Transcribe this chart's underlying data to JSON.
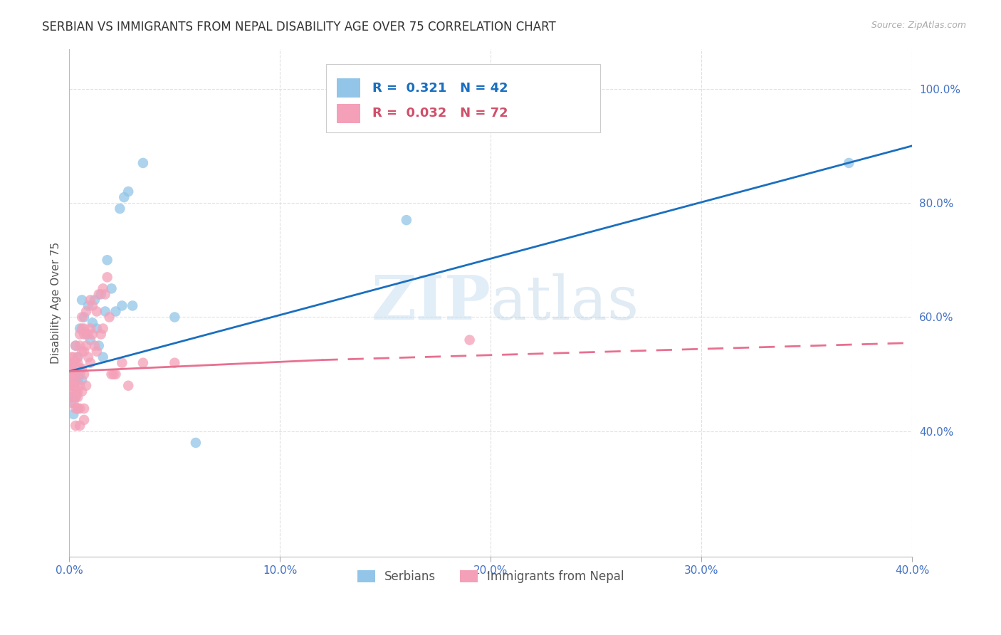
{
  "title": "SERBIAN VS IMMIGRANTS FROM NEPAL DISABILITY AGE OVER 75 CORRELATION CHART",
  "source": "Source: ZipAtlas.com",
  "ylabel": "Disability Age Over 75",
  "legend_label_serbian": "Serbians",
  "legend_label_nepal": "Immigrants from Nepal",
  "serbian_color": "#92C5E8",
  "nepal_color": "#F4A0B8",
  "serbian_line_color": "#1A6FBF",
  "nepal_line_color": "#E87090",
  "axis_color": "#4472C4",
  "title_color": "#333333",
  "serbian_R": 0.321,
  "serbian_N": 42,
  "nepal_R": 0.032,
  "nepal_N": 72,
  "xlim": [
    0.0,
    0.4
  ],
  "ylim": [
    0.18,
    1.07
  ],
  "serbian_x": [
    0.001,
    0.001,
    0.001,
    0.001,
    0.002,
    0.002,
    0.002,
    0.003,
    0.003,
    0.003,
    0.003,
    0.004,
    0.004,
    0.004,
    0.005,
    0.005,
    0.006,
    0.006,
    0.007,
    0.008,
    0.009,
    0.01,
    0.011,
    0.012,
    0.013,
    0.014,
    0.015,
    0.016,
    0.017,
    0.018,
    0.02,
    0.022,
    0.024,
    0.025,
    0.026,
    0.028,
    0.03,
    0.035,
    0.05,
    0.06,
    0.16,
    0.37
  ],
  "serbian_y": [
    0.5,
    0.49,
    0.46,
    0.45,
    0.52,
    0.48,
    0.43,
    0.51,
    0.47,
    0.55,
    0.46,
    0.53,
    0.49,
    0.44,
    0.58,
    0.5,
    0.63,
    0.49,
    0.6,
    0.57,
    0.62,
    0.56,
    0.59,
    0.63,
    0.58,
    0.55,
    0.64,
    0.53,
    0.61,
    0.7,
    0.65,
    0.61,
    0.79,
    0.62,
    0.81,
    0.82,
    0.62,
    0.87,
    0.6,
    0.38,
    0.77,
    0.87
  ],
  "nepal_x": [
    0.001,
    0.001,
    0.001,
    0.001,
    0.001,
    0.001,
    0.002,
    0.002,
    0.002,
    0.002,
    0.002,
    0.002,
    0.002,
    0.003,
    0.003,
    0.003,
    0.003,
    0.003,
    0.003,
    0.003,
    0.003,
    0.004,
    0.004,
    0.004,
    0.004,
    0.004,
    0.004,
    0.005,
    0.005,
    0.005,
    0.005,
    0.005,
    0.005,
    0.006,
    0.006,
    0.006,
    0.006,
    0.006,
    0.007,
    0.007,
    0.007,
    0.007,
    0.007,
    0.007,
    0.008,
    0.008,
    0.008,
    0.009,
    0.009,
    0.01,
    0.01,
    0.01,
    0.011,
    0.011,
    0.012,
    0.013,
    0.013,
    0.014,
    0.015,
    0.016,
    0.016,
    0.017,
    0.018,
    0.019,
    0.02,
    0.021,
    0.022,
    0.025,
    0.028,
    0.035,
    0.05,
    0.19
  ],
  "nepal_y": [
    0.49,
    0.5,
    0.51,
    0.46,
    0.48,
    0.53,
    0.5,
    0.48,
    0.52,
    0.47,
    0.51,
    0.45,
    0.53,
    0.52,
    0.49,
    0.46,
    0.48,
    0.55,
    0.44,
    0.51,
    0.41,
    0.5,
    0.47,
    0.53,
    0.44,
    0.52,
    0.46,
    0.57,
    0.51,
    0.48,
    0.55,
    0.44,
    0.41,
    0.58,
    0.54,
    0.51,
    0.47,
    0.6,
    0.54,
    0.57,
    0.5,
    0.44,
    0.42,
    0.58,
    0.55,
    0.61,
    0.48,
    0.57,
    0.53,
    0.63,
    0.58,
    0.52,
    0.62,
    0.57,
    0.55,
    0.61,
    0.54,
    0.64,
    0.57,
    0.58,
    0.65,
    0.64,
    0.67,
    0.6,
    0.5,
    0.5,
    0.5,
    0.52,
    0.48,
    0.52,
    0.52,
    0.56
  ],
  "background_color": "#FFFFFF",
  "grid_color": "#E0E0E0",
  "xticks": [
    0.0,
    0.1,
    0.2,
    0.3,
    0.4
  ],
  "yticks": [
    0.4,
    0.6,
    0.8,
    1.0
  ],
  "xtick_labels": [
    "0.0%",
    "10.0%",
    "20.0%",
    "30.0%",
    "40.0%"
  ],
  "ytick_labels": [
    "40.0%",
    "60.0%",
    "80.0%",
    "100.0%"
  ]
}
